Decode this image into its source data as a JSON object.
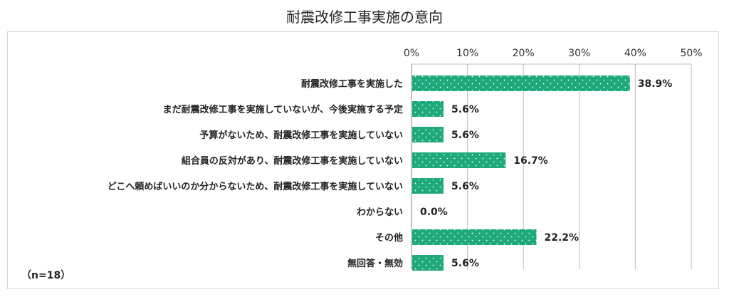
{
  "title": "耐震改修工事実施の意向",
  "n_label": "（n=18）",
  "colors": {
    "bar": "#1ea97c",
    "dot": "#ffffff",
    "grid": "#bdbdbd",
    "axis": "#888888"
  },
  "chart_data": {
    "type": "bar",
    "orientation": "horizontal",
    "title": "耐震改修工事実施の意向",
    "categories": [
      "耐震改修工事を実施した",
      "まだ耐震改修工事を実施していないが、今後実施する予定",
      "予算がないため、耐震改修工事を実施していない",
      "組合員の反対があり、耐震改修工事を実施していない",
      "どこへ頼めばいいのか分からないため、耐震改修工事を実施していない",
      "わからない",
      "その他",
      "無回答・無効"
    ],
    "values": [
      38.9,
      5.6,
      5.6,
      16.7,
      5.6,
      0.0,
      22.2,
      5.6
    ],
    "value_labels": [
      "38.9%",
      "5.6%",
      "5.6%",
      "16.7%",
      "5.6%",
      "0.0%",
      "22.2%",
      "5.6%"
    ],
    "xlim": [
      0,
      50
    ],
    "xticks": [
      0,
      10,
      20,
      30,
      40,
      50
    ],
    "xtick_labels": [
      "0%",
      "10%",
      "20%",
      "30%",
      "40%",
      "50%"
    ],
    "xaxis_position": "top",
    "grid": true,
    "legend": "none"
  }
}
